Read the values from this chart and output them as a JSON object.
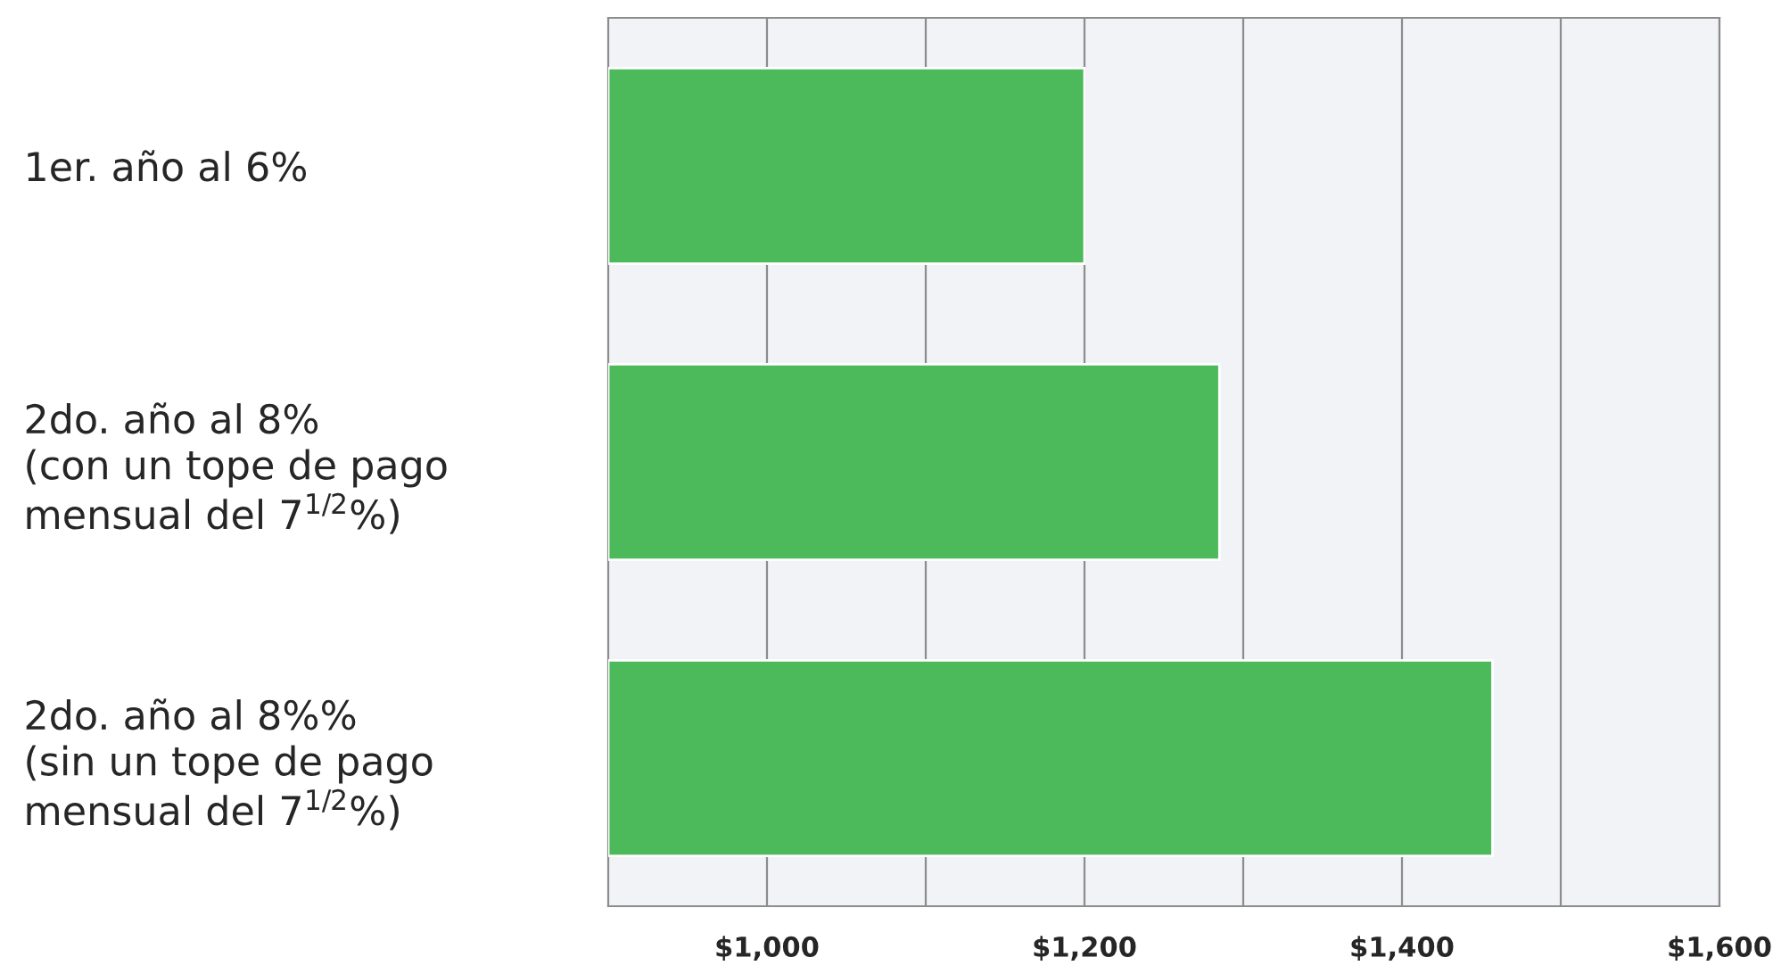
{
  "chart_data": {
    "type": "bar",
    "orientation": "horizontal",
    "categories": [
      "1er. año al 6%",
      "2do. año al 8%\n(con un tope de pago\nmensual del 7$^{1/2}$%)",
      "2do. año al 8%%\n(sin un tope de pago\nmensual del 7$^{1/2}$%)"
    ],
    "values": [
      1200,
      1285,
      1457
    ],
    "color": "#4cb95a",
    "xlim": [
      900,
      1600
    ],
    "xticks": [
      {
        "value": 1000,
        "label": "$1,000"
      },
      {
        "value": 1100,
        "label": null
      },
      {
        "value": 1200,
        "label": "$1,200"
      },
      {
        "value": 1300,
        "label": null
      },
      {
        "value": 1400,
        "label": "$1,400"
      },
      {
        "value": 1500,
        "label": null
      },
      {
        "value": 1600,
        "label": "$1,600"
      }
    ],
    "grid": "x",
    "legend": false
  }
}
